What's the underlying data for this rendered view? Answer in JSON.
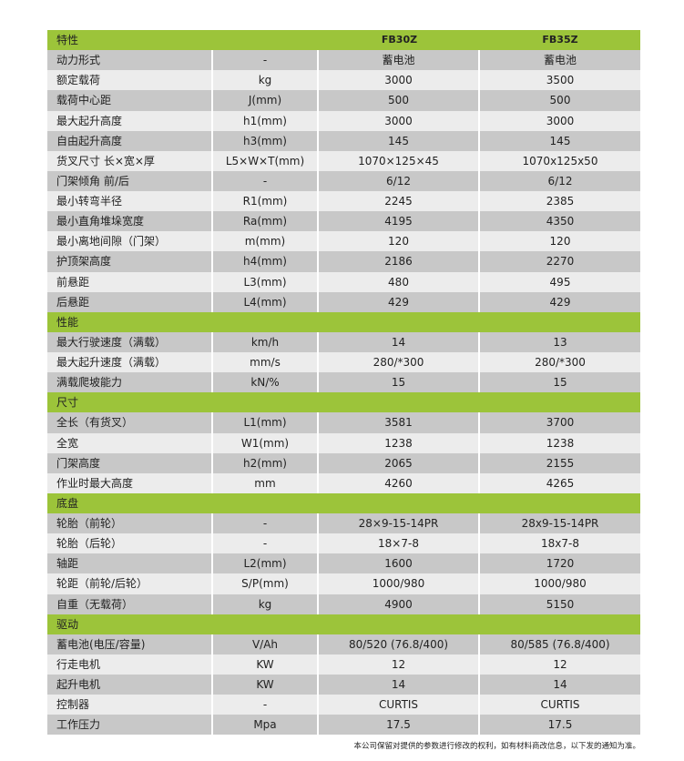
{
  "table": {
    "header": {
      "label": "特性",
      "unit": "",
      "model_a": "FB30Z",
      "model_b": "FB35Z"
    },
    "rows": [
      {
        "label": "动力形式",
        "unit": "-",
        "a": "蓄电池",
        "b": "蓄电池"
      },
      {
        "label": "额定载荷",
        "unit": "kg",
        "a": "3000",
        "b": "3500"
      },
      {
        "label": "载荷中心距",
        "unit": "J(mm)",
        "a": "500",
        "b": "500"
      },
      {
        "label": "最大起升高度",
        "unit": "h1(mm)",
        "a": "3000",
        "b": "3000"
      },
      {
        "label": "自由起升高度",
        "unit": "h3(mm)",
        "a": "145",
        "b": "145"
      },
      {
        "label": "货叉尺寸 长×宽×厚",
        "unit": "L5×W×T(mm)",
        "a": "1070×125×45",
        "b": "1070x125x50"
      },
      {
        "label": "门架倾角 前/后",
        "unit": "-",
        "a": "6/12",
        "b": "6/12"
      },
      {
        "label": "最小转弯半径",
        "unit": "R1(mm)",
        "a": "2245",
        "b": "2385"
      },
      {
        "label": "最小直角堆垛宽度",
        "unit": "Ra(mm)",
        "a": "4195",
        "b": "4350"
      },
      {
        "label": "最小离地间隙（门架）",
        "unit": "m(mm)",
        "a": "120",
        "b": "120"
      },
      {
        "label": "护顶架高度",
        "unit": "h4(mm)",
        "a": "2186",
        "b": "2270"
      },
      {
        "label": "前悬距",
        "unit": "L3(mm)",
        "a": "480",
        "b": "495"
      },
      {
        "label": "后悬距",
        "unit": "L4(mm)",
        "a": "429",
        "b": "429"
      },
      {
        "section": "性能"
      },
      {
        "label": "最大行驶速度（满载）",
        "unit": "km/h",
        "a": "14",
        "b": "13"
      },
      {
        "label": "最大起升速度（满载）",
        "unit": "mm/s",
        "a": "280/*300",
        "b": "280/*300"
      },
      {
        "label": "满载爬坡能力",
        "unit": "kN/%",
        "a": "15",
        "b": "15"
      },
      {
        "section": "尺寸"
      },
      {
        "label": "全长（有货叉）",
        "unit": "L1(mm)",
        "a": "3581",
        "b": "3700"
      },
      {
        "label": "全宽",
        "unit": "W1(mm)",
        "a": "1238",
        "b": "1238"
      },
      {
        "label": "门架高度",
        "unit": "h2(mm)",
        "a": "2065",
        "b": "2155"
      },
      {
        "label": "作业时最大高度",
        "unit": "mm",
        "a": "4260",
        "b": "4265"
      },
      {
        "section": "底盘"
      },
      {
        "label": "轮胎（前轮）",
        "unit": "-",
        "a": "28×9-15-14PR",
        "b": "28x9-15-14PR"
      },
      {
        "label": "轮胎（后轮）",
        "unit": "-",
        "a": "18×7-8",
        "b": "18x7-8"
      },
      {
        "label": "轴距",
        "unit": "L2(mm)",
        "a": "1600",
        "b": "1720"
      },
      {
        "label": "轮距（前轮/后轮）",
        "unit": "S/P(mm)",
        "a": "1000/980",
        "b": "1000/980"
      },
      {
        "label": "自重（无载荷）",
        "unit": "kg",
        "a": "4900",
        "b": "5150"
      },
      {
        "section": "驱动"
      },
      {
        "label": "蓄电池(电压/容量)",
        "unit": "V/Ah",
        "a": "80/520 (76.8/400)",
        "b": "80/585 (76.8/400)"
      },
      {
        "label": "行走电机",
        "unit": "KW",
        "a": "12",
        "b": "12"
      },
      {
        "label": "起升电机",
        "unit": "KW",
        "a": "14",
        "b": "14"
      },
      {
        "label": "控制器",
        "unit": "-",
        "a": "CURTIS",
        "b": "CURTIS"
      },
      {
        "label": "工作压力",
        "unit": "Mpa",
        "a": "17.5",
        "b": "17.5"
      }
    ]
  },
  "footnote": "本公司保留对提供的参数进行修改的权利，如有材料商改信息，以下发的通知为准。",
  "colors": {
    "section": "#9cc43a",
    "row_dark": "#c8c8c8",
    "row_light": "#ececec"
  }
}
